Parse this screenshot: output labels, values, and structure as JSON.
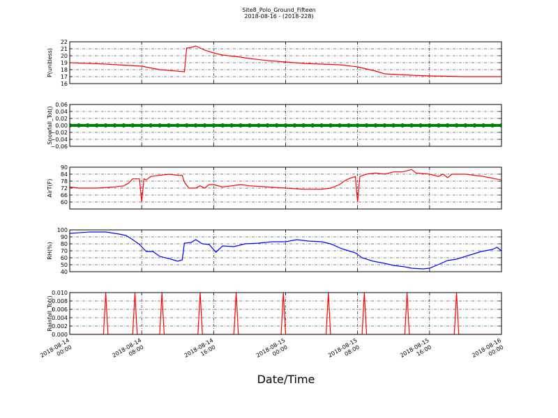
{
  "chart_data": [
    {
      "type": "line",
      "title": "Site8_Polo_Ground_Fifteen",
      "subtitle": "2018-08-16 - (2018-228)",
      "ylabel": "P(unitless)",
      "color": "#ff0000",
      "x": [
        "2018-08-14 00:00",
        "2018-08-14 04:00",
        "2018-08-14 08:00",
        "2018-08-14 10:00",
        "2018-08-14 12:45",
        "2018-08-14 13:00",
        "2018-08-14 13:30",
        "2018-08-14 14:00",
        "2018-08-14 15:00",
        "2018-08-14 16:00",
        "2018-08-14 17:00",
        "2018-08-14 19:00",
        "2018-08-14 20:00",
        "2018-08-14 22:00",
        "2018-08-15 00:00",
        "2018-08-15 02:00",
        "2018-08-15 04:00",
        "2018-08-15 06:00",
        "2018-08-15 08:00",
        "2018-08-15 10:00",
        "2018-08-15 11:00",
        "2018-08-15 14:00",
        "2018-08-15 16:00",
        "2018-08-15 20:00",
        "2018-08-16 00:00"
      ],
      "values": [
        19.0,
        18.8,
        18.5,
        18.0,
        17.7,
        21.1,
        21.2,
        21.4,
        20.8,
        20.4,
        20.1,
        19.8,
        19.6,
        19.3,
        19.1,
        18.9,
        18.8,
        18.7,
        18.4,
        17.8,
        17.4,
        17.2,
        17.1,
        17.0,
        17.0
      ],
      "xlim": [
        "2018-08-14 00:00",
        "2018-08-16 00:00"
      ],
      "xticks": [
        "2018-08-14 00:00",
        "2018-08-14 08:00",
        "2018-08-14 16:00",
        "2018-08-15 00:00",
        "2018-08-15 08:00",
        "2018-08-15 16:00",
        "2018-08-16 00:00"
      ],
      "ylim": [
        16,
        22
      ],
      "yticks": [
        16,
        17,
        18,
        19,
        20,
        21,
        22
      ],
      "grid": true
    },
    {
      "type": "scatter",
      "ylabel": "Snowfall_Tot()",
      "color": "#008000",
      "x": [
        "2018-08-14 00:00",
        "2018-08-14 01:00",
        "2018-08-14 02:00",
        "2018-08-14 03:00",
        "2018-08-14 04:00",
        "2018-08-14 05:00",
        "2018-08-14 06:00",
        "2018-08-14 07:00",
        "2018-08-14 08:00",
        "2018-08-14 09:00",
        "2018-08-14 10:00",
        "2018-08-14 11:00",
        "2018-08-14 12:00",
        "2018-08-14 13:00",
        "2018-08-14 14:00",
        "2018-08-14 15:00",
        "2018-08-14 16:00",
        "2018-08-14 17:00",
        "2018-08-14 18:00",
        "2018-08-14 19:00",
        "2018-08-14 20:00",
        "2018-08-14 21:00",
        "2018-08-14 22:00",
        "2018-08-14 23:00",
        "2018-08-15 00:00",
        "2018-08-15 01:00",
        "2018-08-15 02:00",
        "2018-08-15 03:00",
        "2018-08-15 04:00",
        "2018-08-15 05:00",
        "2018-08-15 06:00",
        "2018-08-15 07:00",
        "2018-08-15 08:00",
        "2018-08-15 09:00",
        "2018-08-15 10:00",
        "2018-08-15 11:00",
        "2018-08-15 12:00",
        "2018-08-15 13:00",
        "2018-08-15 14:00",
        "2018-08-15 15:00",
        "2018-08-15 16:00",
        "2018-08-15 17:00",
        "2018-08-15 18:00",
        "2018-08-15 19:00",
        "2018-08-15 20:00",
        "2018-08-15 21:00",
        "2018-08-15 22:00",
        "2018-08-15 23:00",
        "2018-08-16 00:00"
      ],
      "values": [
        0,
        0,
        0,
        0,
        0,
        0,
        0,
        0,
        0,
        0,
        0,
        0,
        0,
        0,
        0,
        0,
        0,
        0,
        0,
        0,
        0,
        0,
        0,
        0,
        0,
        0,
        0,
        0,
        0,
        0,
        0,
        0,
        0,
        0,
        0,
        0,
        0,
        0,
        0,
        0,
        0,
        0,
        0,
        0,
        0,
        0,
        0,
        0,
        0
      ],
      "xlim": [
        "2018-08-14 00:00",
        "2018-08-16 00:00"
      ],
      "xticks": [
        "2018-08-14 00:00",
        "2018-08-14 08:00",
        "2018-08-14 16:00",
        "2018-08-15 00:00",
        "2018-08-15 08:00",
        "2018-08-15 16:00",
        "2018-08-16 00:00"
      ],
      "ylim": [
        -0.06,
        0.06
      ],
      "yticks": [
        {
          "value": -0.06,
          "label": "−0.06"
        },
        {
          "value": -0.04,
          "label": "−0.04"
        },
        {
          "value": -0.02,
          "label": "−0.02"
        },
        {
          "value": 0,
          "label": "0.00"
        },
        0.02,
        0.04,
        0.06
      ],
      "grid": true
    },
    {
      "type": "line",
      "ylabel": "AirT(F)",
      "color": "#ff0000",
      "x": [
        "2018-08-14 00:00",
        "2018-08-14 01:00",
        "2018-08-14 03:00",
        "2018-08-14 05:00",
        "2018-08-14 06:00",
        "2018-08-14 06:30",
        "2018-08-14 07:00",
        "2018-08-14 07:45",
        "2018-08-14 08:00",
        "2018-08-14 08:15",
        "2018-08-14 08:30",
        "2018-08-14 09:00",
        "2018-08-14 10:00",
        "2018-08-14 11:00",
        "2018-08-14 12:00",
        "2018-08-14 12:30",
        "2018-08-14 12:45",
        "2018-08-14 13:15",
        "2018-08-14 14:00",
        "2018-08-14 14:30",
        "2018-08-14 15:00",
        "2018-08-14 15:30",
        "2018-08-14 16:00",
        "2018-08-14 17:00",
        "2018-08-14 18:00",
        "2018-08-14 19:00",
        "2018-08-14 20:00",
        "2018-08-14 22:00",
        "2018-08-15 00:00",
        "2018-08-15 02:00",
        "2018-08-15 04:00",
        "2018-08-15 05:00",
        "2018-08-15 06:00",
        "2018-08-15 06:30",
        "2018-08-15 07:00",
        "2018-08-15 07:45",
        "2018-08-15 08:00",
        "2018-08-15 08:15",
        "2018-08-15 09:00",
        "2018-08-15 10:00",
        "2018-08-15 11:00",
        "2018-08-15 12:00",
        "2018-08-15 13:00",
        "2018-08-15 14:00",
        "2018-08-15 14:30",
        "2018-08-15 16:00",
        "2018-08-15 17:00",
        "2018-08-15 17:30",
        "2018-08-15 18:00",
        "2018-08-15 18:30",
        "2018-08-15 20:00",
        "2018-08-15 22:00",
        "2018-08-16 00:00"
      ],
      "values": [
        73,
        72,
        72,
        73,
        74,
        76,
        80,
        80,
        60,
        80,
        79,
        82,
        83,
        84,
        83,
        83,
        77,
        72,
        72,
        74,
        72,
        75,
        75,
        73,
        74,
        75,
        74,
        73,
        72,
        71,
        71,
        72,
        75,
        78,
        80,
        82,
        60,
        82,
        84,
        85,
        84,
        86,
        86,
        88,
        85,
        84,
        82,
        84,
        81,
        84,
        84,
        82,
        79
      ],
      "xlim": [
        "2018-08-14 00:00",
        "2018-08-16 00:00"
      ],
      "xticks": [
        "2018-08-14 00:00",
        "2018-08-14 08:00",
        "2018-08-14 16:00",
        "2018-08-15 00:00",
        "2018-08-15 08:00",
        "2018-08-15 16:00",
        "2018-08-16 00:00"
      ],
      "ylim": [
        54,
        90
      ],
      "yticks": [
        60,
        66,
        72,
        78,
        84,
        90
      ],
      "grid": true
    },
    {
      "type": "line",
      "ylabel": "RH(%)",
      "color": "#0000ff",
      "x": [
        "2018-08-14 00:00",
        "2018-08-14 02:15",
        "2018-08-14 04:00",
        "2018-08-14 05:30",
        "2018-08-14 06:15",
        "2018-08-14 07:00",
        "2018-08-14 07:45",
        "2018-08-14 08:30",
        "2018-08-14 09:15",
        "2018-08-14 10:00",
        "2018-08-14 11:15",
        "2018-08-14 12:00",
        "2018-08-14 12:30",
        "2018-08-14 12:45",
        "2018-08-14 13:30",
        "2018-08-14 14:00",
        "2018-08-14 14:45",
        "2018-08-14 15:30",
        "2018-08-14 16:15",
        "2018-08-14 17:00",
        "2018-08-14 18:15",
        "2018-08-14 19:30",
        "2018-08-14 21:00",
        "2018-08-14 22:30",
        "2018-08-15 00:00",
        "2018-08-15 01:15",
        "2018-08-15 02:30",
        "2018-08-15 04:00",
        "2018-08-15 05:00",
        "2018-08-15 06:15",
        "2018-08-15 07:00",
        "2018-08-15 07:45",
        "2018-08-15 08:30",
        "2018-08-15 09:45",
        "2018-08-15 11:00",
        "2018-08-15 12:00",
        "2018-08-15 13:15",
        "2018-08-15 14:00",
        "2018-08-15 15:15",
        "2018-08-15 16:00",
        "2018-08-15 16:45",
        "2018-08-15 18:00",
        "2018-08-15 19:00",
        "2018-08-15 20:15",
        "2018-08-15 21:45",
        "2018-08-15 23:00",
        "2018-08-15 23:30",
        "2018-08-16 00:00"
      ],
      "values": [
        95,
        97,
        97,
        94,
        92,
        86,
        79,
        69,
        69,
        62,
        58,
        55,
        57,
        81,
        82,
        86,
        80,
        79,
        68,
        77,
        76,
        80,
        81,
        83,
        83,
        86,
        84,
        83,
        80,
        73,
        70,
        67,
        60,
        55,
        52,
        49,
        47,
        45,
        44,
        45,
        49,
        56,
        58,
        63,
        69,
        72,
        75,
        70
      ],
      "xlim": [
        "2018-08-14 00:00",
        "2018-08-16 00:00"
      ],
      "xticks": [
        "2018-08-14 00:00",
        "2018-08-14 08:00",
        "2018-08-14 16:00",
        "2018-08-15 00:00",
        "2018-08-15 08:00",
        "2018-08-15 16:00",
        "2018-08-16 00:00"
      ],
      "ylim": [
        40,
        100
      ],
      "yticks": [
        40,
        50,
        60,
        70,
        80,
        90,
        100
      ],
      "grid": true
    },
    {
      "type": "line",
      "ylabel": "Rainfall_Tot()",
      "xlabel": "Date/Time",
      "color": "#ff0000",
      "x": [
        "2018-08-14 00:00",
        "2018-08-14 03:45",
        "2018-08-14 04:00",
        "2018-08-14 04:15",
        "2018-08-14 07:00",
        "2018-08-14 07:15",
        "2018-08-14 07:30",
        "2018-08-14 10:00",
        "2018-08-14 10:15",
        "2018-08-14 10:30",
        "2018-08-14 14:15",
        "2018-08-14 14:30",
        "2018-08-14 14:45",
        "2018-08-14 18:15",
        "2018-08-14 18:30",
        "2018-08-14 18:45",
        "2018-08-14 23:30",
        "2018-08-14 23:45",
        "2018-08-15 00:00",
        "2018-08-15 04:30",
        "2018-08-15 04:45",
        "2018-08-15 05:00",
        "2018-08-15 08:30",
        "2018-08-15 08:45",
        "2018-08-15 09:00",
        "2018-08-15 13:15",
        "2018-08-15 13:30",
        "2018-08-15 13:45",
        "2018-08-15 18:45",
        "2018-08-15 19:00",
        "2018-08-15 19:15",
        "2018-08-16 00:00"
      ],
      "values": [
        0,
        0,
        0.01,
        0,
        0,
        0.01,
        0,
        0,
        0.01,
        0,
        0,
        0.01,
        0,
        0,
        0.01,
        0,
        0,
        0.01,
        0,
        0,
        0.01,
        0,
        0,
        0.01,
        0,
        0,
        0.01,
        0,
        0,
        0.01,
        0,
        0
      ],
      "xlim": [
        "2018-08-14 00:00",
        "2018-08-16 00:00"
      ],
      "xticks": [
        "2018-08-14 00:00",
        "2018-08-14 08:00",
        "2018-08-14 16:00",
        "2018-08-15 00:00",
        "2018-08-15 08:00",
        "2018-08-15 16:00",
        "2018-08-16 00:00"
      ],
      "ylim": [
        0,
        0.01
      ],
      "yticks": [
        {
          "value": 0,
          "label": "0.000"
        },
        {
          "value": 0.002,
          "label": "0.002"
        },
        {
          "value": 0.004,
          "label": "0.004"
        },
        {
          "value": 0.006,
          "label": "0.006"
        },
        {
          "value": 0.008,
          "label": "0.008"
        },
        {
          "value": 0.01,
          "label": "0.010"
        }
      ],
      "grid": true
    }
  ]
}
